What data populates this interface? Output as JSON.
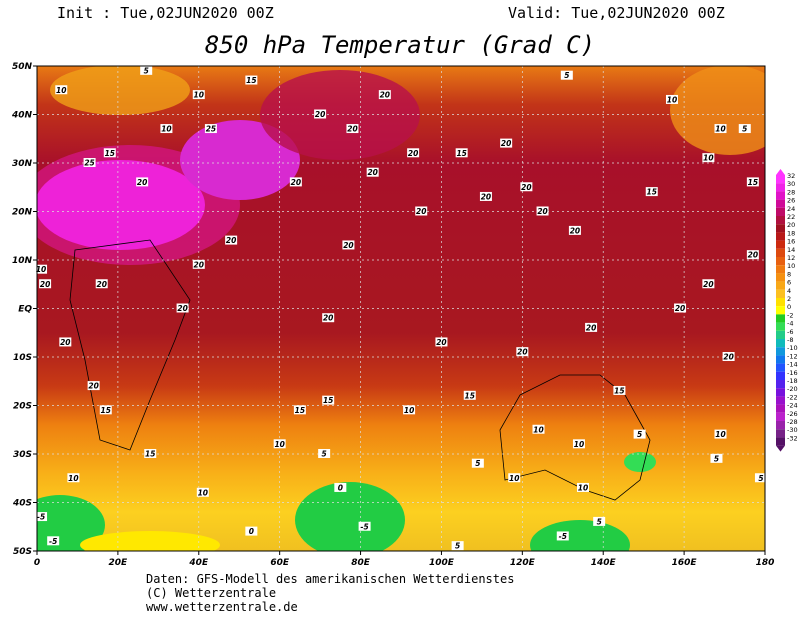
{
  "header": {
    "init": "Init : Tue,02JUN2020 00Z",
    "valid": "Valid: Tue,02JUN2020 00Z",
    "title": "850 hPa Temperatur (Grad C)"
  },
  "map": {
    "lonlim": [
      0,
      180
    ],
    "latlim": [
      -50,
      50
    ],
    "lonticks": [
      0,
      {
        "value": 20,
        "label": "20E"
      },
      {
        "value": 40,
        "label": "40E"
      },
      {
        "value": 60,
        "label": "60E"
      },
      {
        "value": 80,
        "label": "80E"
      },
      {
        "value": 100,
        "label": "100E"
      },
      {
        "value": 120,
        "label": "120E"
      },
      {
        "value": 140,
        "label": "140E"
      },
      {
        "value": 160,
        "label": "160E"
      },
      180
    ],
    "latticks": [
      {
        "value": 50,
        "label": "50N"
      },
      {
        "value": 40,
        "label": "40N"
      },
      {
        "value": 30,
        "label": "30N"
      },
      {
        "value": 20,
        "label": "20N"
      },
      {
        "value": 10,
        "label": "10N"
      },
      {
        "value": 0,
        "label": "EQ"
      },
      {
        "value": -10,
        "label": "10S"
      },
      {
        "value": -20,
        "label": "20S"
      },
      {
        "value": -30,
        "label": "30S"
      },
      {
        "value": -40,
        "label": "40S"
      },
      {
        "value": -50,
        "label": "50S"
      }
    ],
    "grid": true,
    "contour_labels": [
      {
        "lon": 6,
        "lat": 45,
        "value": 10
      },
      {
        "lon": 27,
        "lat": 49,
        "value": 5
      },
      {
        "lon": 40,
        "lat": 44,
        "value": 10
      },
      {
        "lon": 53,
        "lat": 47,
        "value": 15
      },
      {
        "lon": 32,
        "lat": 37,
        "value": 10
      },
      {
        "lon": 43,
        "lat": 37,
        "value": 25
      },
      {
        "lon": 13,
        "lat": 30,
        "value": 25
      },
      {
        "lon": 18,
        "lat": 32,
        "value": 15
      },
      {
        "lon": 26,
        "lat": 26,
        "value": 20
      },
      {
        "lon": 48,
        "lat": 14,
        "value": 20
      },
      {
        "lon": 40,
        "lat": 9,
        "value": 20
      },
      {
        "lon": 2,
        "lat": 5,
        "value": 20
      },
      {
        "lon": 16,
        "lat": 5,
        "value": 20
      },
      {
        "lon": 36,
        "lat": 0,
        "value": 20
      },
      {
        "lon": 7,
        "lat": -7,
        "value": 20
      },
      {
        "lon": 14,
        "lat": -16,
        "value": 20
      },
      {
        "lon": 17,
        "lat": -21,
        "value": 15
      },
      {
        "lon": 28,
        "lat": -30,
        "value": 15
      },
      {
        "lon": 9,
        "lat": -35,
        "value": 10
      },
      {
        "lon": 41,
        "lat": -38,
        "value": 10
      },
      {
        "lon": 1,
        "lat": -43,
        "value": -5
      },
      {
        "lon": 4,
        "lat": -48,
        "value": -5
      },
      {
        "lon": 53,
        "lat": -46,
        "value": 0
      },
      {
        "lon": 81,
        "lat": -45,
        "value": -5
      },
      {
        "lon": 75,
        "lat": -37,
        "value": 0
      },
      {
        "lon": 71,
        "lat": -30,
        "value": 5
      },
      {
        "lon": 60,
        "lat": -28,
        "value": 10
      },
      {
        "lon": 65,
        "lat": -21,
        "value": 15
      },
      {
        "lon": 72,
        "lat": -19,
        "value": 15
      },
      {
        "lon": 92,
        "lat": -21,
        "value": 10
      },
      {
        "lon": 107,
        "lat": -18,
        "value": 15
      },
      {
        "lon": 124,
        "lat": -25,
        "value": 10
      },
      {
        "lon": 134,
        "lat": -28,
        "value": 10
      },
      {
        "lon": 149,
        "lat": -26,
        "value": 5
      },
      {
        "lon": 169,
        "lat": -26,
        "value": 10
      },
      {
        "lon": 168,
        "lat": -31,
        "value": 5
      },
      {
        "lon": 179,
        "lat": -35,
        "value": 5
      },
      {
        "lon": 175,
        "lat": 37,
        "value": 5
      },
      {
        "lon": 169,
        "lat": 37,
        "value": 10
      },
      {
        "lon": 166,
        "lat": 31,
        "value": 10
      },
      {
        "lon": 157,
        "lat": 43,
        "value": 10
      },
      {
        "lon": 131,
        "lat": 48,
        "value": 5
      },
      {
        "lon": 133,
        "lat": 16,
        "value": 20
      },
      {
        "lon": 125,
        "lat": 20,
        "value": 20
      },
      {
        "lon": 111,
        "lat": 23,
        "value": 20
      },
      {
        "lon": 95,
        "lat": 20,
        "value": 20
      },
      {
        "lon": 77,
        "lat": 13,
        "value": 20
      },
      {
        "lon": 72,
        "lat": -2,
        "value": 20
      },
      {
        "lon": 100,
        "lat": -7,
        "value": 20
      },
      {
        "lon": 120,
        "lat": -9,
        "value": 20
      },
      {
        "lon": 137,
        "lat": -4,
        "value": 20
      },
      {
        "lon": 159,
        "lat": 0,
        "value": 20
      },
      {
        "lon": 166,
        "lat": 5,
        "value": 20
      },
      {
        "lon": 177,
        "lat": 11,
        "value": 20
      },
      {
        "lon": 171,
        "lat": -10,
        "value": 20
      },
      {
        "lon": 144,
        "lat": -17,
        "value": 15
      },
      {
        "lon": 109,
        "lat": -32,
        "value": 5
      },
      {
        "lon": 118,
        "lat": -35,
        "value": 10
      },
      {
        "lon": 135,
        "lat": -37,
        "value": 10
      },
      {
        "lon": 139,
        "lat": -44,
        "value": 5
      },
      {
        "lon": 130,
        "lat": -47,
        "value": -5
      },
      {
        "lon": 104,
        "lat": -49,
        "value": 5
      },
      {
        "lon": 86,
        "lat": 44,
        "value": 20
      },
      {
        "lon": 70,
        "lat": 40,
        "value": 20
      },
      {
        "lon": 78,
        "lat": 37,
        "value": 20
      },
      {
        "lon": 93,
        "lat": 32,
        "value": 20
      },
      {
        "lon": 105,
        "lat": 32,
        "value": 15
      },
      {
        "lon": 116,
        "lat": 34,
        "value": 20
      },
      {
        "lon": 83,
        "lat": 28,
        "value": 20
      },
      {
        "lon": 64,
        "lat": 26,
        "value": 20
      },
      {
        "lon": 121,
        "lat": 25,
        "value": 20
      },
      {
        "lon": 152,
        "lat": 24,
        "value": 15
      },
      {
        "lon": 177,
        "lat": 26,
        "value": 15
      },
      {
        "lon": 1,
        "lat": 8,
        "value": 10
      }
    ]
  },
  "colorbar": {
    "levels": [
      32,
      30,
      28,
      26,
      24,
      22,
      20,
      18,
      16,
      14,
      12,
      10,
      8,
      6,
      4,
      2,
      0,
      -2,
      -4,
      -6,
      -8,
      -10,
      -12,
      -14,
      -16,
      -18,
      -20,
      -22,
      -24,
      -26,
      -28,
      -30,
      -32
    ],
    "colors": [
      "#ff33ff",
      "#f022e8",
      "#e012c8",
      "#d00a98",
      "#c00a68",
      "#b0103e",
      "#a01020",
      "#b81818",
      "#cc2a10",
      "#dd4a10",
      "#e86010",
      "#f07a10",
      "#f59010",
      "#f8a818",
      "#fcc020",
      "#ffe000",
      "#ffff00",
      "#22cc22",
      "#33dd55",
      "#22cc88",
      "#11bbbb",
      "#1199dd",
      "#1177ee",
      "#2255ff",
      "#3333ff",
      "#5522ee",
      "#7711dd",
      "#9911cc",
      "#aa11bb",
      "#bb22cc",
      "#9922aa",
      "#772288",
      "#551166"
    ]
  },
  "footer": {
    "source": "Daten: GFS-Modell des amerikanischen Wetterdienstes",
    "copyright": "(C) Wetterzentrale",
    "url": "www.wetterzentrale.de"
  }
}
